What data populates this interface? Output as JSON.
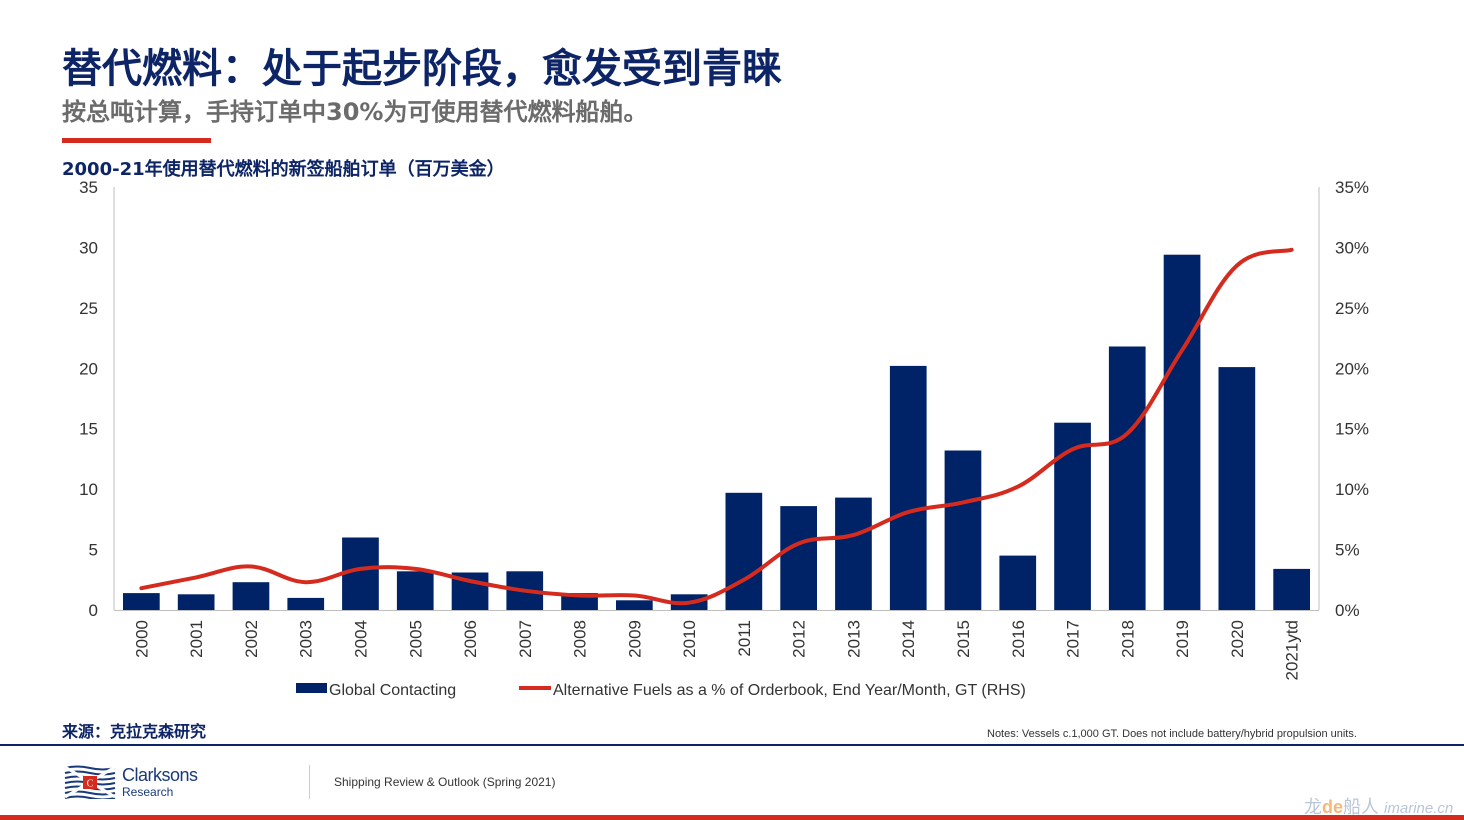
{
  "header": {
    "title": "替代燃料：处于起步阶段，愈发受到青睐",
    "subtitle": "按总吨计算，手持订单中30%为可使用替代燃料船舶。"
  },
  "chart_data": {
    "type": "bar",
    "title": "2000-21年使用替代燃料的新签船舶订单（百万美金）",
    "xlabel": "",
    "ylabel": "",
    "categories": [
      "2000",
      "2001",
      "2002",
      "2003",
      "2004",
      "2005",
      "2006",
      "2007",
      "2008",
      "2009",
      "2010",
      "2011",
      "2012",
      "2013",
      "2014",
      "2015",
      "2016",
      "2017",
      "2018",
      "2019",
      "2020",
      "2021ytd"
    ],
    "series": [
      {
        "name": "Global Contacting",
        "type": "bar",
        "axis": "left",
        "color": "#002266",
        "values": [
          1.4,
          1.3,
          2.3,
          1.0,
          6.0,
          3.2,
          3.1,
          3.2,
          1.4,
          0.8,
          1.3,
          9.7,
          8.6,
          9.3,
          20.2,
          13.2,
          4.5,
          15.5,
          21.8,
          29.4,
          20.1,
          3.4
        ]
      },
      {
        "name": "Alternative Fuels as a % of Orderbook, End Year/Month, GT (RHS)",
        "type": "line",
        "axis": "right",
        "color": "#d52b1e",
        "values": [
          1.8,
          2.7,
          3.6,
          2.3,
          3.4,
          3.4,
          2.4,
          1.6,
          1.2,
          1.2,
          0.6,
          2.5,
          5.5,
          6.2,
          8.1,
          8.9,
          10.2,
          13.3,
          14.6,
          21.5,
          28.5,
          29.8
        ]
      }
    ],
    "ylim": [
      0,
      35
    ],
    "y2lim": [
      0,
      35
    ],
    "yticks": [
      "0",
      "5",
      "10",
      "15",
      "20",
      "25",
      "30",
      "35"
    ],
    "y2ticks": [
      "0%",
      "5%",
      "10%",
      "15%",
      "20%",
      "25%",
      "30%",
      "35%"
    ],
    "grid": false,
    "legend": "bottom-center"
  },
  "footer": {
    "source": "来源：克拉克森研究",
    "notes": "Notes: Vessels c.1,000 GT. Does not include battery/hybrid propulsion units.",
    "brand_name": "Clarksons",
    "brand_sub": "Research",
    "logo_letter": "C",
    "publication": "Shipping Review & Outlook (Spring 2021)",
    "watermark_cn1": "龙",
    "watermark_de": "de",
    "watermark_cn2": "船人",
    "watermark_url": "imarine.cn"
  }
}
